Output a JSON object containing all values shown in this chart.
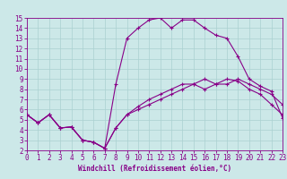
{
  "xlabel": "Windchill (Refroidissement éolien,°C)",
  "xlim": [
    0,
    23
  ],
  "ylim": [
    2,
    15
  ],
  "xticks": [
    0,
    1,
    2,
    3,
    4,
    5,
    6,
    7,
    8,
    9,
    10,
    11,
    12,
    13,
    14,
    15,
    16,
    17,
    18,
    19,
    20,
    21,
    22,
    23
  ],
  "yticks": [
    2,
    3,
    4,
    5,
    6,
    7,
    8,
    9,
    10,
    11,
    12,
    13,
    14,
    15
  ],
  "bg_color": "#cce8e8",
  "line_color": "#880088",
  "line1_x": [
    0,
    1,
    2,
    3,
    4,
    5,
    6,
    7,
    8,
    9,
    10,
    11,
    12,
    13,
    14,
    15,
    16,
    17,
    18,
    19,
    20,
    21,
    22,
    23
  ],
  "line1_y": [
    5.5,
    4.7,
    5.5,
    4.2,
    4.3,
    3.0,
    2.8,
    2.2,
    4.2,
    5.5,
    6.0,
    6.5,
    7.0,
    7.5,
    8.0,
    8.5,
    8.0,
    8.5,
    9.0,
    8.8,
    8.0,
    7.5,
    6.5,
    5.5
  ],
  "line2_x": [
    0,
    1,
    2,
    3,
    4,
    5,
    6,
    7,
    8,
    9,
    10,
    11,
    12,
    13,
    14,
    15,
    16,
    17,
    18,
    19,
    20,
    21,
    22,
    23
  ],
  "line2_y": [
    5.5,
    4.7,
    5.5,
    4.2,
    4.3,
    3.0,
    2.8,
    2.2,
    8.5,
    13.0,
    14.0,
    14.8,
    15.0,
    14.0,
    14.8,
    14.8,
    14.0,
    13.3,
    13.0,
    11.2,
    9.0,
    8.3,
    7.8,
    5.2
  ],
  "line3_x": [
    0,
    1,
    2,
    3,
    4,
    5,
    6,
    7,
    8,
    9,
    10,
    11,
    12,
    13,
    14,
    15,
    16,
    17,
    18,
    19,
    20,
    21,
    22,
    23
  ],
  "line3_y": [
    5.5,
    4.7,
    5.5,
    4.2,
    4.3,
    3.0,
    2.8,
    2.2,
    4.2,
    5.5,
    6.3,
    7.0,
    7.5,
    8.0,
    8.5,
    8.5,
    9.0,
    8.5,
    8.5,
    9.0,
    8.5,
    8.0,
    7.5,
    6.5
  ],
  "grid_color": "#aad0d0",
  "marker": "+"
}
